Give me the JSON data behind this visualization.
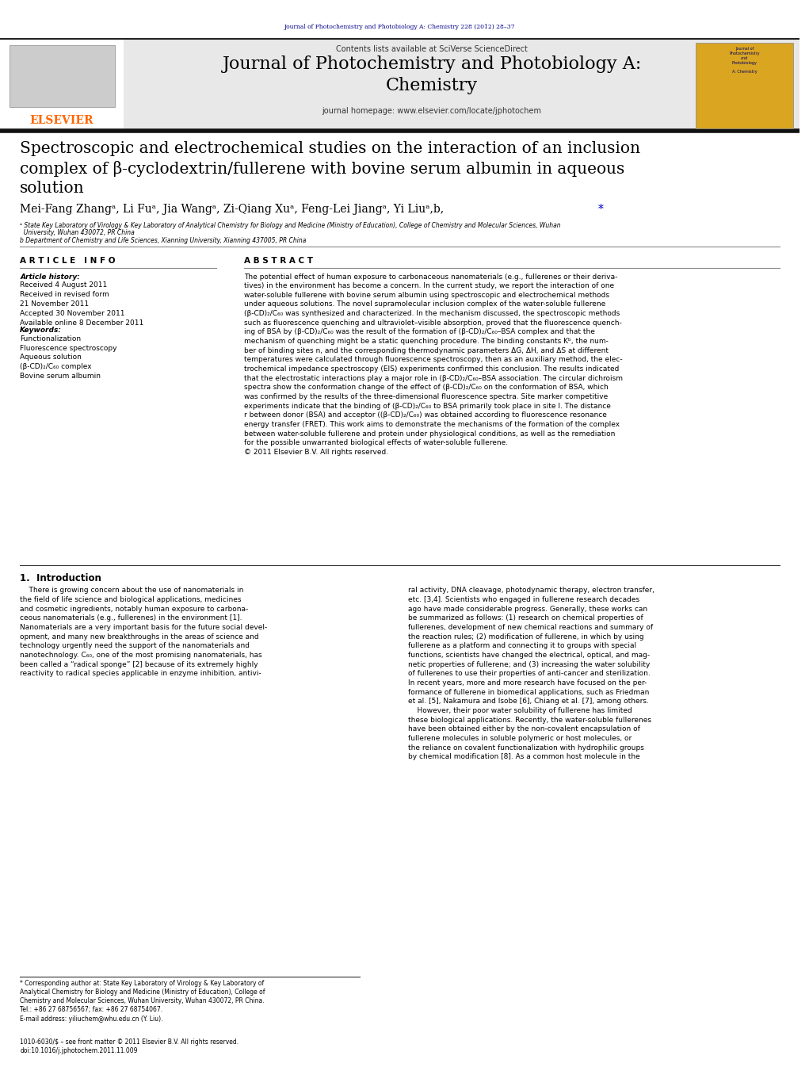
{
  "page_width": 10.21,
  "page_height": 13.51,
  "bg_color": "#ffffff",
  "top_journal_line": "Journal of Photochemistry and Photobiology A: Chemistry 228 (2012) 28–37",
  "top_journal_color": "#00008B",
  "header_bg": "#e8e8e8",
  "elsevier_color": "#FF6600",
  "homepage_color": "#0000CC",
  "article_title": "Spectroscopic and electrochemical studies on the interaction of an inclusion\ncomplex of β-cyclodextrin/fullerene with bovine serum albumin in aqueous\nsolution",
  "authors_line": "Mei-Fang Zhangᵃ, Li Fuᵃ, Jia Wangᵃ, Zi-Qiang Xuᵃ, Feng-Lei Jiangᵃ, Yi Liuᵃ,b,",
  "affil_a": "ᵃ State Key Laboratory of Virology & Key Laboratory of Analytical Chemistry for Biology and Medicine (Ministry of Education), College of Chemistry and Molecular Sciences, Wuhan",
  "affil_a2": "  University, Wuhan 430072, PR China",
  "affil_b": "b Department of Chemistry and Life Sciences, Xianning University, Xianning 437005, PR China",
  "article_info_header": "A R T I C L E   I N F O",
  "abstract_header": "A B S T R A C T",
  "article_history_label": "Article history:",
  "article_history": "Received 4 August 2011\nReceived in revised form\n21 November 2011\nAccepted 30 November 2011\nAvailable online 8 December 2011",
  "keywords_label": "Keywords:",
  "keywords": "Functionalization\nFluorescence spectroscopy\nAqueous solution\n(β-CD)₂/C₆₀ complex\nBovine serum albumin",
  "abstract_text": "The potential effect of human exposure to carbonaceous nanomaterials (e.g., fullerenes or their deriva-\ntives) in the environment has become a concern. In the current study, we report the interaction of one\nwater-soluble fullerene with bovine serum albumin using spectroscopic and electrochemical methods\nunder aqueous solutions. The novel supramolecular inclusion complex of the water-soluble fullerene\n(β-CD)₂/C₆₀ was synthesized and characterized. In the mechanism discussed, the spectroscopic methods\nsuch as fluorescence quenching and ultraviolet–visible absorption, proved that the fluorescence quench-\ning of BSA by (β-CD)₂/C₆₀ was the result of the formation of (β-CD)₂/C₆₀–BSA complex and that the\nmechanism of quenching might be a static quenching procedure. The binding constants Kᵇ, the num-\nber of binding sites n, and the corresponding thermodynamic parameters ΔG, ΔH, and ΔS at different\ntemperatures were calculated through fluorescence spectroscopy, then as an auxiliary method, the elec-\ntrochemical impedance spectroscopy (EIS) experiments confirmed this conclusion. The results indicated\nthat the electrostatic interactions play a major role in (β-CD)₂/C₆₀–BSA association. The circular dichroism\nspectra show the conformation change of the effect of (β-CD)₂/C₆₀ on the conformation of BSA, which\nwas confirmed by the results of the three-dimensional fluorescence spectra. Site marker competitive\nexperiments indicate that the binding of (β-CD)₂/C₆₀ to BSA primarily took place in site I. The distance\nr between donor (BSA) and acceptor ((β-CD)₂/C₆₀) was obtained according to fluorescence resonance\nenergy transfer (FRET). This work aims to demonstrate the mechanisms of the formation of the complex\nbetween water-soluble fullerene and protein under physiological conditions, as well as the remediation\nfor the possible unwarranted biological effects of water-soluble fullerene.\n© 2011 Elsevier B.V. All rights reserved.",
  "intro_header": "1.  Introduction",
  "intro_col1": "    There is growing concern about the use of nanomaterials in\nthe field of life science and biological applications, medicines\nand cosmetic ingredients, notably human exposure to carbona-\nceous nanomaterials (e.g., fullerenes) in the environment [1].\nNanomaterials are a very important basis for the future social devel-\nopment, and many new breakthroughs in the areas of science and\ntechnology urgently need the support of the nanomaterials and\nnanotechnology. C₆₀, one of the most promising nanomaterials, has\nbeen called a “radical sponge” [2] because of its extremely highly\nreactivity to radical species applicable in enzyme inhibition, antivi-",
  "intro_col2": "ral activity, DNA cleavage, photodynamic therapy, electron transfer,\netc. [3,4]. Scientists who engaged in fullerene research decades\nago have made considerable progress. Generally, these works can\nbe summarized as follows: (1) research on chemical properties of\nfullerenes, development of new chemical reactions and summary of\nthe reaction rules; (2) modification of fullerene, in which by using\nfullerene as a platform and connecting it to groups with special\nfunctions, scientists have changed the electrical, optical, and mag-\nnetic properties of fullerene; and (3) increasing the water solubility\nof fullerenes to use their properties of anti-cancer and sterilization.\nIn recent years, more and more research have focused on the per-\nformance of fullerene in biomedical applications, such as Friedman\net al. [5], Nakamura and Isobe [6], Chiang et al. [7], among others.\n    However, their poor water solubility of fullerene has limited\nthese biological applications. Recently, the water-soluble fullerenes\nhave been obtained either by the non-covalent encapsulation of\nfullerene molecules in soluble polymeric or host molecules, or\nthe reliance on covalent functionalization with hydrophilic groups\nby chemical modification [8]. As a common host molecule in the",
  "footnote_star": "* Corresponding author at: State Key Laboratory of Virology & Key Laboratory of\nAnalytical Chemistry for Biology and Medicine (Ministry of Education), College of\nChemistry and Molecular Sciences, Wuhan University, Wuhan 430072, PR China.\nTel.: +86 27 68756567; fax: +86 27 68754067.\nE-mail address: yiliuchem@whu.edu.cn (Y. Liu).",
  "issn_line": "1010-6030/$ – see front matter © 2011 Elsevier B.V. All rights reserved.",
  "doi_line": "doi:10.1016/j.jphotochem.2011.11.009"
}
